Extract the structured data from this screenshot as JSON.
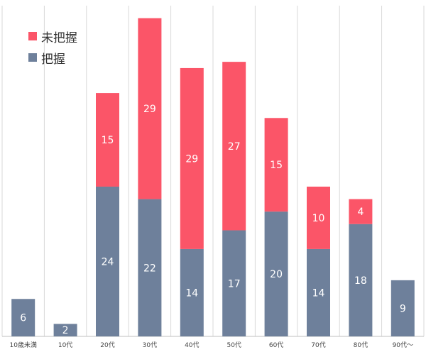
{
  "chart_data": {
    "type": "bar",
    "stacked": true,
    "categories": [
      "10歳未満",
      "10代",
      "20代",
      "30代",
      "40代",
      "50代",
      "60代",
      "70代",
      "80代",
      "90代〜"
    ],
    "series": [
      {
        "name": "把握",
        "color": "#6e809b",
        "values": [
          6,
          2,
          24,
          22,
          14,
          17,
          20,
          14,
          18,
          9
        ]
      },
      {
        "name": "未把握",
        "color": "#fb5568",
        "values": [
          0,
          0,
          15,
          29,
          29,
          27,
          15,
          10,
          4,
          0
        ]
      }
    ],
    "ylim": [
      0,
      53
    ],
    "grid": "vertical",
    "data_labels": true,
    "legend_position": "top-left"
  }
}
